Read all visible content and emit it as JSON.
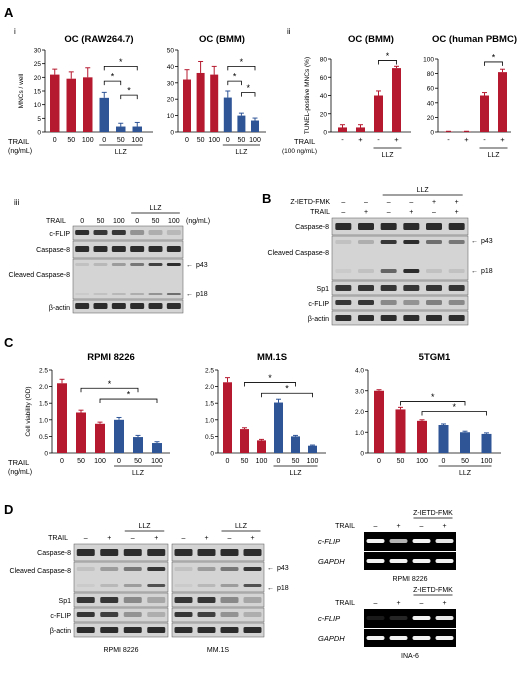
{
  "panel_letters": {
    "A": "A",
    "B": "B",
    "C": "C",
    "D": "D"
  },
  "sub_labels": {
    "i": "i",
    "ii": "ii",
    "iii": "iii"
  },
  "colors": {
    "red": "#B5192F",
    "blue": "#2F5597",
    "gel_bg": "#D4D4D4",
    "band": "#1a1a1a"
  },
  "common": {
    "trail": "TRAIL",
    "ngml": "(ng/mL)",
    "trail_100": "(100 ng/mL)",
    "llz": "LLZ",
    "x_0_50_100": [
      "0",
      "50",
      "100",
      "0",
      "50",
      "100"
    ],
    "x_pm4": [
      "-",
      "+",
      "-",
      "+"
    ],
    "z_ietd": "Z-IETD-FMK",
    "arrow": "←"
  },
  "chart_data": [
    {
      "id": "a_raw",
      "type": "bar",
      "title": "OC (RAW264.7)",
      "ylabel": "MNCs / well",
      "ylim": [
        0,
        30
      ],
      "yticks": [
        0,
        5,
        10,
        15,
        20,
        25,
        30
      ],
      "values": [
        21,
        19.5,
        20,
        12.5,
        2,
        2
      ],
      "errors": [
        2,
        2.5,
        3.5,
        2,
        1.2,
        1.5
      ],
      "colors": [
        "red",
        "red",
        "red",
        "blue",
        "blue",
        "blue"
      ],
      "significance": [
        "*",
        "*",
        "*"
      ]
    },
    {
      "id": "a_bmm",
      "type": "bar",
      "title": "OC (BMM)",
      "ylabel": "",
      "ylim": [
        0,
        50
      ],
      "yticks": [
        0,
        10,
        20,
        30,
        40,
        50
      ],
      "values": [
        32,
        36,
        35,
        21,
        10,
        7
      ],
      "errors": [
        6,
        7,
        5,
        4,
        1.5,
        1.5
      ],
      "colors": [
        "red",
        "red",
        "red",
        "blue",
        "blue",
        "blue"
      ],
      "significance": [
        "*",
        "*",
        "*"
      ]
    },
    {
      "id": "a_tunel_bmm",
      "type": "bar",
      "title": "OC (BMM)",
      "ylabel": "TUNEL-positive MNCs (%)",
      "ylim": [
        0,
        80
      ],
      "yticks": [
        0,
        20,
        40,
        60,
        80
      ],
      "values": [
        5,
        5,
        40,
        70
      ],
      "errors": [
        3,
        3,
        5,
        2
      ],
      "colors": [
        "red",
        "red",
        "red",
        "red"
      ],
      "significance": [
        "*"
      ]
    },
    {
      "id": "a_tunel_pbmc",
      "type": "bar",
      "title": "OC (human PBMC)",
      "ylabel": "",
      "ylim": [
        0,
        100
      ],
      "yticks": [
        0,
        20,
        40,
        60,
        80,
        100
      ],
      "values": [
        0.5,
        0.5,
        50,
        82
      ],
      "errors": [
        0.5,
        0.5,
        4,
        4
      ],
      "colors": [
        "red",
        "red",
        "red",
        "red"
      ],
      "significance": [
        "*"
      ]
    },
    {
      "id": "c_rpmi",
      "type": "bar",
      "title": "RPMI 8226",
      "ylabel": "Cell viability (OD)",
      "ylim": [
        0,
        2.5
      ],
      "yticks": [
        0,
        0.5,
        1,
        1.5,
        2,
        2.5
      ],
      "values": [
        2.1,
        1.22,
        0.88,
        1.0,
        0.48,
        0.3
      ],
      "errors": [
        0.12,
        0.07,
        0.05,
        0.07,
        0.05,
        0.04
      ],
      "colors": [
        "red",
        "red",
        "red",
        "blue",
        "blue",
        "blue"
      ],
      "significance": [
        "*",
        "*"
      ]
    },
    {
      "id": "c_mm1s",
      "type": "bar",
      "title": "MM.1S",
      "ylabel": "",
      "ylim": [
        0,
        2.5
      ],
      "yticks": [
        0,
        0.5,
        1,
        1.5,
        2,
        2.5
      ],
      "values": [
        2.13,
        0.72,
        0.38,
        1.52,
        0.5,
        0.22
      ],
      "errors": [
        0.14,
        0.04,
        0.03,
        0.1,
        0.03,
        0.02
      ],
      "colors": [
        "red",
        "red",
        "red",
        "blue",
        "blue",
        "blue"
      ],
      "significance": [
        "*",
        "*"
      ]
    },
    {
      "id": "c_5tgm1",
      "type": "bar",
      "title": "5TGM1",
      "ylabel": "",
      "ylim": [
        0,
        4
      ],
      "yticks": [
        0,
        1,
        2,
        3,
        4
      ],
      "values": [
        3.0,
        2.1,
        1.55,
        1.35,
        1.0,
        0.92
      ],
      "errors": [
        0.05,
        0.1,
        0.05,
        0.05,
        0.05,
        0.05
      ],
      "colors": [
        "red",
        "red",
        "red",
        "blue",
        "blue",
        "blue"
      ],
      "significance": [
        "*",
        "*"
      ]
    }
  ],
  "tick_text": {
    "a_raw": [
      "0",
      "5",
      "10",
      "15",
      "20",
      "25",
      "30"
    ],
    "a_bmm": [
      "0",
      "10",
      "20",
      "30",
      "40",
      "50"
    ],
    "a_tunel_bmm": [
      "0",
      "20",
      "40",
      "60",
      "80"
    ],
    "a_tunel_pbmc": [
      "0",
      "20",
      "40",
      "60",
      "80",
      "100"
    ],
    "c_rpmi": [
      "0",
      "0.5",
      "1.0",
      "1.5",
      "2.0",
      "2.5"
    ],
    "c_mm1s": [
      "0",
      "0.5",
      "1.0",
      "1.5",
      "2.0",
      "2.5"
    ],
    "c_5tgm1": [
      "0",
      "1.0",
      "2.0",
      "3.0",
      "4.0"
    ]
  },
  "blot_iii": {
    "header": [
      "0",
      "50",
      "100",
      "0",
      "50",
      "100"
    ],
    "unit": "(ng/mL)",
    "rows": [
      "c-FLIP",
      "Caspase-8",
      "Cleaved Caspase-8",
      "β-actin"
    ],
    "arrows": [
      "p43",
      "p18"
    ]
  },
  "blot_b": {
    "rows": [
      "Caspase-8",
      "Cleaved Caspase-8",
      "Sp1",
      "c-FLIP",
      "β-actin"
    ],
    "z_signs": [
      "–",
      "–",
      "–",
      "–",
      "+",
      "+"
    ],
    "trail_signs": [
      "–",
      "+",
      "–",
      "+",
      "–",
      "+"
    ],
    "arrows": [
      "p43",
      "p18"
    ]
  },
  "blot_d": {
    "rows": [
      "Caspase-8",
      "Cleaved Caspase-8",
      "Sp1",
      "c-FLIP",
      "β-actin"
    ],
    "signs": [
      "–",
      "+",
      "–",
      "+"
    ],
    "cell_left": "RPMI 8226",
    "cell_right": "MM.1S",
    "arrows": [
      "p43",
      "p18"
    ]
  },
  "pcr": {
    "signs": [
      "–",
      "+",
      "–",
      "+"
    ],
    "genes": [
      "c-FLIP",
      "GAPDH"
    ],
    "cell_top": "RPMI 8226",
    "cell_bottom": "INA-6"
  }
}
